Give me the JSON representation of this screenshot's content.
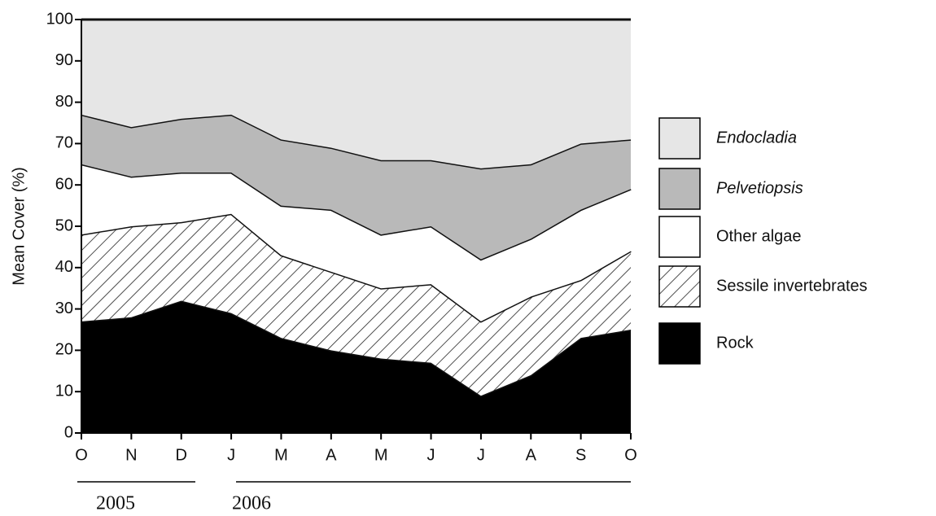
{
  "chart_data": {
    "type": "stacked-area",
    "y_label": "Mean Cover (%)",
    "categories": [
      "O",
      "N",
      "D",
      "J",
      "M",
      "A",
      "M",
      "J",
      "J",
      "A",
      "S",
      "O"
    ],
    "annotations": [
      "2005",
      "2006"
    ],
    "ylim": [
      0,
      100
    ],
    "yticks": [
      0,
      10,
      20,
      30,
      40,
      50,
      60,
      70,
      80,
      90,
      100
    ],
    "legend": "right",
    "series": [
      {
        "name": "Rock",
        "color": "#000000",
        "values": [
          27,
          28,
          32,
          29,
          23,
          20,
          18,
          17,
          9,
          14,
          23,
          25
        ]
      },
      {
        "name": "Sessile invertebrates",
        "color": "#ffffff",
        "hatch": true,
        "values": [
          21,
          22,
          19,
          24,
          20,
          19,
          17,
          19,
          18,
          19,
          14,
          19
        ]
      },
      {
        "name": "Other algae",
        "color": "#ffffff",
        "values": [
          17,
          12,
          12,
          10,
          12,
          15,
          13,
          14,
          15,
          14,
          17,
          15
        ]
      },
      {
        "name": "Pelvetiopsis",
        "color": "#b9b9b9",
        "italic": true,
        "values": [
          12,
          12,
          13,
          14,
          16,
          15,
          18,
          16,
          22,
          18,
          16,
          12
        ]
      },
      {
        "name": "Endocladia",
        "color": "#e6e6e6",
        "italic": true,
        "values": [
          23,
          26,
          24,
          23,
          29,
          31,
          34,
          34,
          36,
          35,
          30,
          29
        ]
      }
    ]
  }
}
